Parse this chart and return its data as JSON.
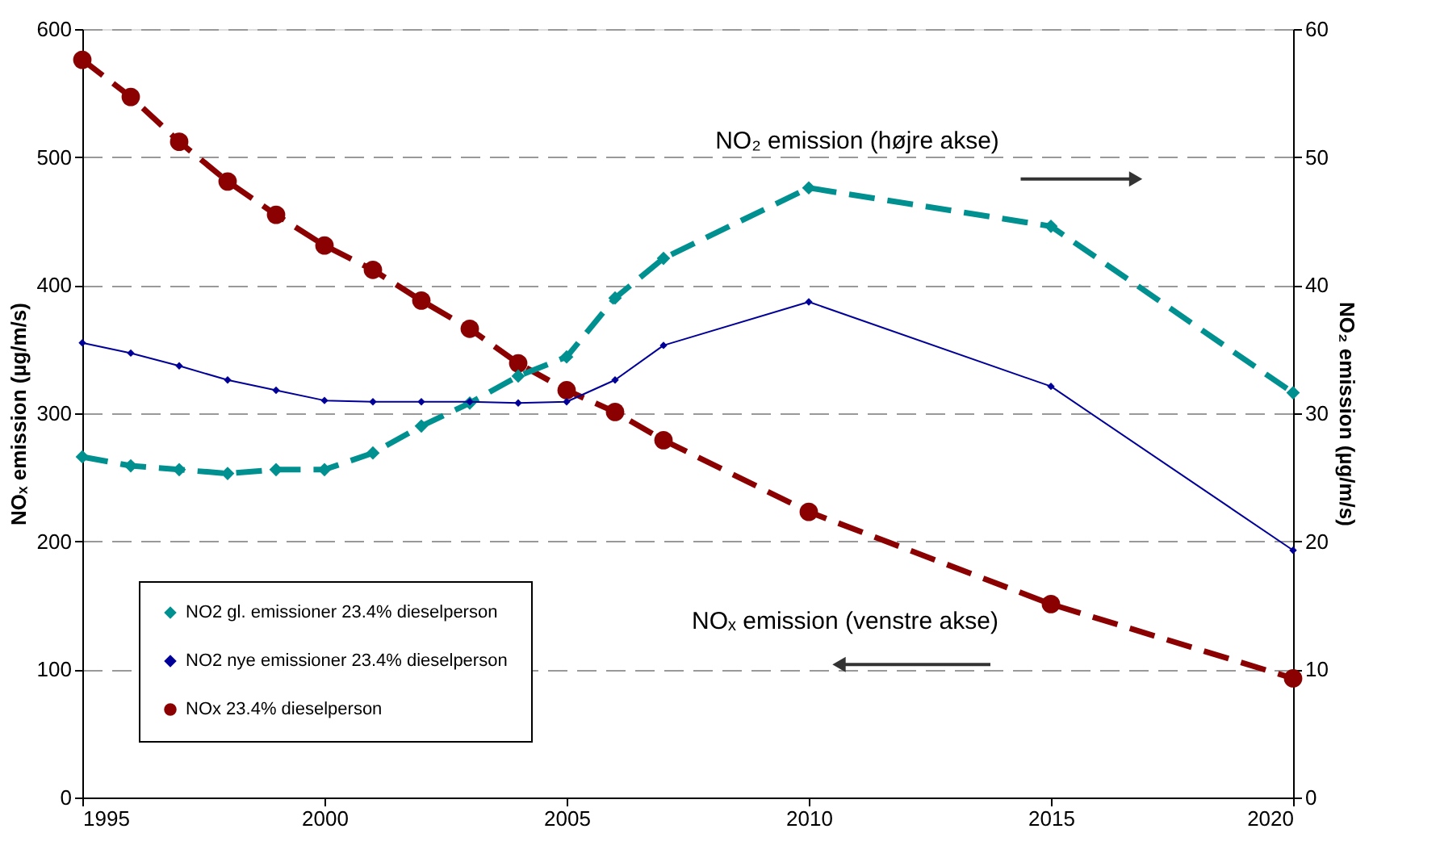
{
  "chart_data": {
    "type": "line",
    "ylabel": "NOₓ emission (µg/m/s)",
    "y2label": "NO₂ emission (µg/m/s)",
    "xlim": [
      1995,
      2020
    ],
    "xticks": [
      1995,
      2000,
      2005,
      2010,
      2015,
      2020
    ],
    "ylim": [
      0,
      600
    ],
    "yticks": [
      0,
      100,
      200,
      300,
      400,
      500,
      600
    ],
    "y2lim": [
      0,
      60
    ],
    "y2ticks": [
      0,
      10,
      20,
      30,
      40,
      50,
      60
    ],
    "grid": "y",
    "legend": "bottom left",
    "annotations": [
      "NO₂ emission (højre akse)",
      "NOₓ emission (venstre akse)"
    ],
    "series": [
      {
        "name": "NO2 gl. emissioner 23.4% dieselperson",
        "color": "#009090",
        "axis": "y2",
        "marker": "diamond",
        "line_style": "dashed",
        "x": [
          1995,
          1996,
          1997,
          1998,
          1999,
          2000,
          2001,
          2002,
          2003,
          2004,
          2005,
          2006,
          2007,
          2010,
          2015,
          2020
        ],
        "values": [
          26.6,
          25.9,
          25.6,
          25.3,
          25.6,
          25.6,
          26.9,
          29.0,
          30.8,
          32.9,
          34.4,
          39.0,
          42.1,
          47.6,
          44.6,
          31.6
        ]
      },
      {
        "name": "NO2 nye emissioner 23.4% dieselperson",
        "color": "#000099",
        "axis": "y2",
        "marker": "diamond",
        "line_style": "solid",
        "x": [
          1995,
          1996,
          1997,
          1998,
          1999,
          2000,
          2001,
          2002,
          2003,
          2004,
          2005,
          2006,
          2007,
          2010,
          2015,
          2020
        ],
        "values": [
          35.5,
          34.7,
          33.7,
          32.6,
          31.8,
          31.0,
          30.9,
          30.9,
          30.9,
          30.8,
          30.9,
          32.6,
          35.3,
          38.7,
          32.1,
          19.3
        ]
      },
      {
        "name": "NOx 23.4% dieselperson",
        "color": "#8b0000",
        "axis": "y",
        "marker": "circle",
        "line_style": "dashed",
        "x": [
          1995,
          1996,
          1997,
          1998,
          1999,
          2000,
          2001,
          2002,
          2003,
          2004,
          2005,
          2006,
          2007,
          2010,
          2015,
          2020
        ],
        "values": [
          576,
          547,
          512,
          481,
          455,
          431,
          412,
          388,
          366,
          339,
          318,
          301,
          279,
          223,
          151,
          93
        ]
      }
    ]
  }
}
